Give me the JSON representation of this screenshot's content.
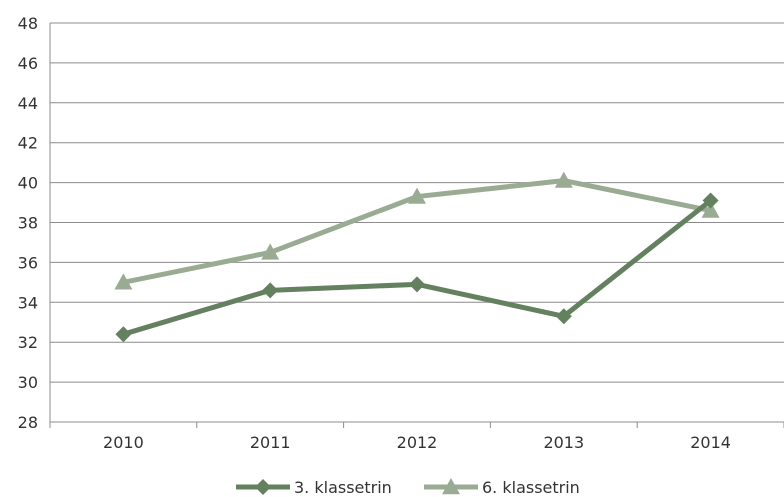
{
  "chart_data": {
    "type": "line",
    "categories": [
      "2010",
      "2011",
      "2012",
      "2013",
      "2014"
    ],
    "series": [
      {
        "name": "3. klassetrin",
        "values": [
          32.4,
          34.6,
          34.9,
          33.3,
          39.1
        ],
        "color": "#63805f",
        "marker": "diamond"
      },
      {
        "name": "6. klassetrin",
        "values": [
          35.0,
          36.5,
          39.3,
          40.1,
          38.6
        ],
        "color": "#9aab93",
        "marker": "triangle"
      }
    ],
    "yticks": [
      "28",
      "30",
      "32",
      "34",
      "36",
      "38",
      "40",
      "42",
      "44",
      "46",
      "48"
    ],
    "ylim": [
      28,
      48
    ],
    "grid": true,
    "legend": "bottom",
    "title": "",
    "xlabel": "",
    "ylabel": ""
  }
}
